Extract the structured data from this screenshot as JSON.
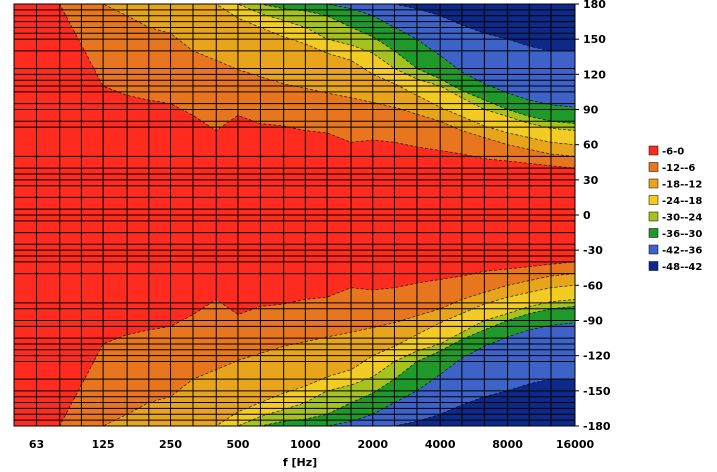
{
  "chart_data": {
    "type": "heatmap",
    "title": "",
    "xlabel": "f [Hz]",
    "ylabel": "",
    "x_scale": "log2",
    "x_ticks": [
      "63",
      "125",
      "250",
      "500",
      "1000",
      "2000",
      "4000",
      "8000",
      "16000"
    ],
    "x_tick_values": [
      63,
      125,
      250,
      500,
      1000,
      2000,
      4000,
      8000,
      16000
    ],
    "xlim": [
      50,
      16000
    ],
    "y_ticks": [
      "180",
      "150",
      "120",
      "90",
      "60",
      "30",
      "0",
      "-30",
      "-60",
      "-90",
      "-120",
      "-150",
      "-180"
    ],
    "y_tick_values": [
      180,
      150,
      120,
      90,
      60,
      30,
      0,
      -30,
      -60,
      -90,
      -120,
      -150,
      -180
    ],
    "ylim": [
      -180,
      180
    ],
    "symmetric_about_zero": true,
    "contour_levels": [
      -48,
      -42,
      -36,
      -30,
      -24,
      -18,
      -12,
      -6,
      0
    ],
    "legend_position": "right",
    "legend": [
      {
        "label": "-6-0",
        "color": "#ff2b1f"
      },
      {
        "label": "-12--6",
        "color": "#e8761f"
      },
      {
        "label": "-18--12",
        "color": "#e8a51c"
      },
      {
        "label": "-24--18",
        "color": "#f2cc22"
      },
      {
        "label": "-30--24",
        "color": "#a6c21e"
      },
      {
        "label": "-36--30",
        "color": "#1f9a2a"
      },
      {
        "label": "-42--36",
        "color": "#3d62c8"
      },
      {
        "label": "-48--42",
        "color": "#0d2a8a"
      }
    ],
    "level_boundary_angles_deg": {
      "x_hz": [
        50,
        63,
        80,
        100,
        125,
        160,
        200,
        250,
        315,
        400,
        500,
        630,
        800,
        1000,
        1250,
        1600,
        2000,
        2500,
        3150,
        4000,
        5000,
        6300,
        8000,
        10000,
        12500,
        16000
      ],
      "minus_6": [
        180,
        180,
        180,
        145,
        110,
        102,
        98,
        95,
        85,
        72,
        85,
        78,
        76,
        72,
        70,
        62,
        64,
        62,
        58,
        55,
        52,
        48,
        46,
        44,
        42,
        40
      ],
      "minus_12": [
        180,
        180,
        180,
        180,
        180,
        170,
        160,
        155,
        140,
        132,
        124,
        118,
        112,
        108,
        104,
        100,
        96,
        92,
        86,
        80,
        72,
        66,
        60,
        56,
        52,
        50
      ],
      "minus_18": [
        180,
        180,
        180,
        180,
        180,
        180,
        180,
        180,
        180,
        180,
        168,
        160,
        152,
        146,
        138,
        132,
        120,
        112,
        102,
        92,
        84,
        76,
        70,
        66,
        62,
        60
      ],
      "minus_24": [
        180,
        180,
        180,
        180,
        180,
        180,
        180,
        180,
        180,
        180,
        180,
        172,
        166,
        160,
        150,
        145,
        138,
        125,
        116,
        110,
        100,
        90,
        84,
        78,
        74,
        72
      ],
      "minus_30": [
        180,
        180,
        180,
        180,
        180,
        180,
        180,
        180,
        180,
        180,
        180,
        180,
        176,
        174,
        170,
        160,
        152,
        140,
        125,
        116,
        106,
        98,
        90,
        84,
        80,
        78
      ],
      "minus_36": [
        180,
        180,
        180,
        180,
        180,
        180,
        180,
        180,
        180,
        180,
        180,
        180,
        180,
        180,
        180,
        176,
        170,
        160,
        150,
        136,
        122,
        112,
        104,
        98,
        94,
        92
      ],
      "minus_42": [
        180,
        180,
        180,
        180,
        180,
        180,
        180,
        180,
        180,
        180,
        180,
        180,
        180,
        180,
        180,
        180,
        180,
        180,
        176,
        170,
        162,
        155,
        150,
        144,
        140,
        140
      ]
    },
    "x_gridlines_hz": [
      80,
      100,
      160,
      200,
      315,
      400,
      630,
      800,
      1250,
      1600,
      2500,
      3150,
      5000,
      6300,
      10000,
      12500
    ],
    "y_gridlines_deg": [
      -175,
      -170,
      -165,
      -160,
      -155,
      -150,
      -140,
      -125,
      -120,
      -115,
      -110,
      -105,
      -95,
      -90,
      -80,
      -75,
      -50,
      -40,
      -35,
      -30,
      -25,
      -15,
      -5,
      0,
      5,
      15,
      25,
      30,
      35,
      40,
      50,
      75,
      80,
      90,
      95,
      105,
      110,
      115,
      120,
      125,
      140,
      150,
      155,
      160,
      165,
      170,
      175
    ],
    "grid": true
  }
}
